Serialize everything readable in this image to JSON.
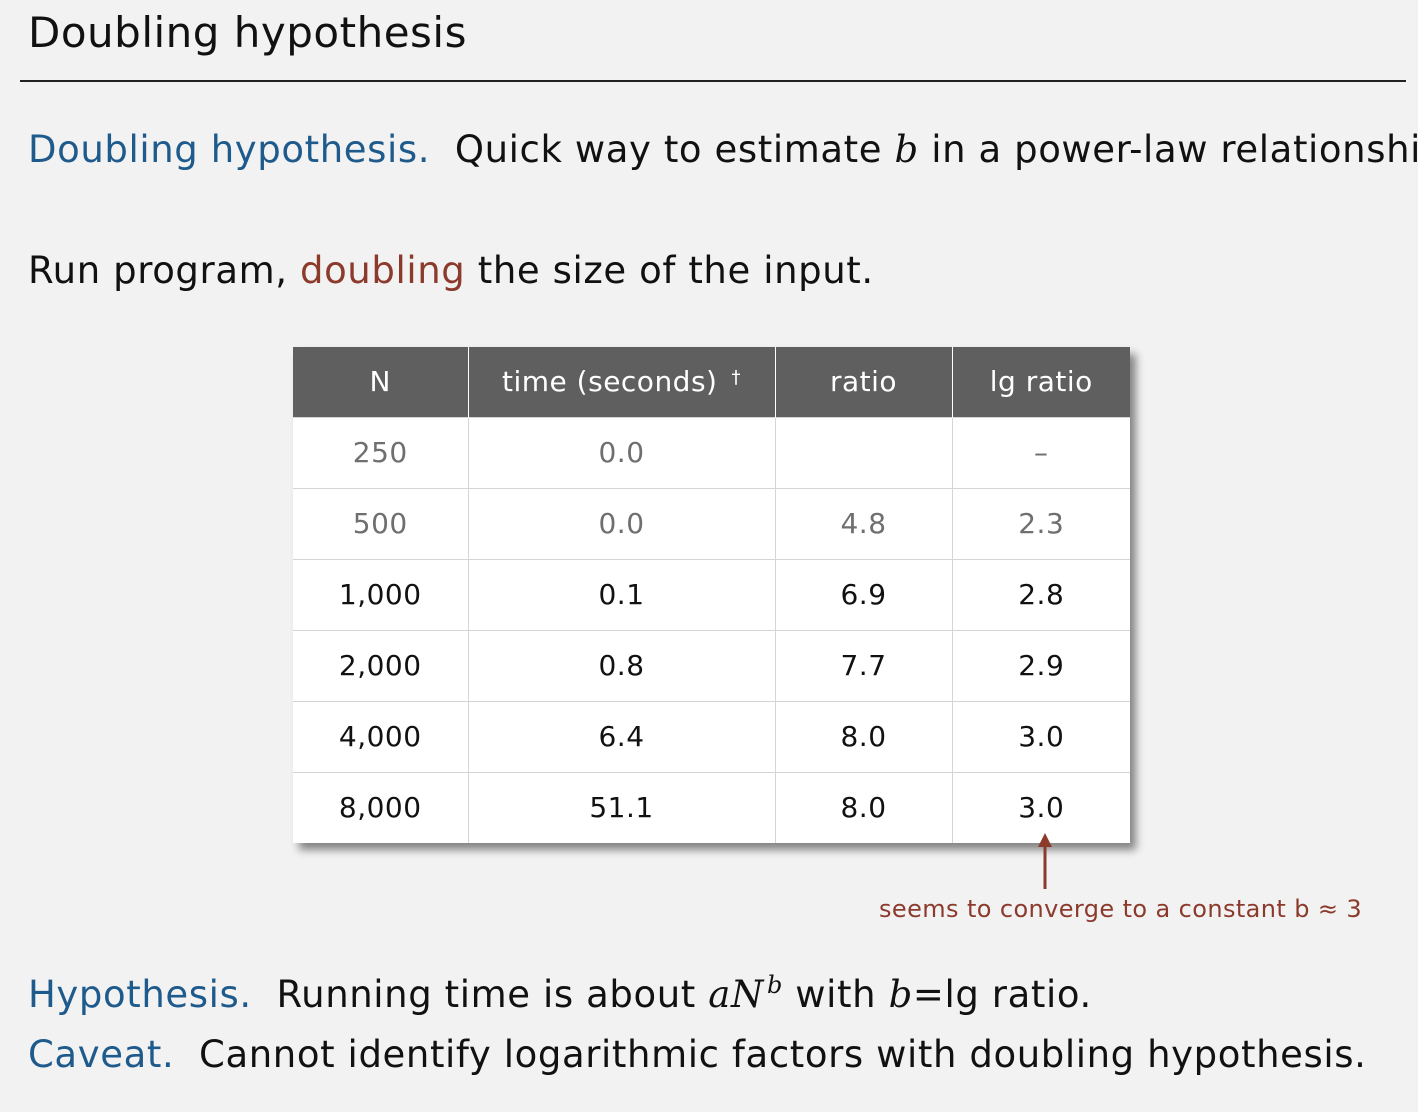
{
  "title": "Doubling hypothesis",
  "intro": {
    "keyword": "Doubling hypothesis.",
    "text_before": "Quick way to estimate",
    "var_b": "b",
    "text_after": "in a power-law relationship."
  },
  "run": {
    "before": "Run program,",
    "emph": "doubling",
    "after": "the size of the input."
  },
  "table": {
    "headers": [
      "N",
      "time (seconds)",
      "ratio",
      "lg ratio"
    ],
    "dagger": "†",
    "rows": [
      {
        "n": "250",
        "time": "0.0",
        "ratio": "",
        "lg": "–"
      },
      {
        "n": "500",
        "time": "0.0",
        "ratio": "4.8",
        "lg": "2.3"
      },
      {
        "n": "1,000",
        "time": "0.1",
        "ratio": "6.9",
        "lg": "2.8"
      },
      {
        "n": "2,000",
        "time": "0.8",
        "ratio": "7.7",
        "lg": "2.9"
      },
      {
        "n": "4,000",
        "time": "6.4",
        "ratio": "8.0",
        "lg": "3.0"
      },
      {
        "n": "8,000",
        "time": "51.1",
        "ratio": "8.0",
        "lg": "3.0"
      }
    ]
  },
  "annotation": "seems to converge to a constant b ≈ 3",
  "hypothesis": {
    "keyword": "Hypothesis.",
    "text1": "Running time is about",
    "a": "a",
    "N": "N",
    "b_exp": "b",
    "text2": "with",
    "b": "b",
    "eq": "=",
    "text3": "lg ratio."
  },
  "caveat": {
    "keyword": "Caveat.",
    "text": "Cannot identify logarithmic factors with doubling hypothesis."
  },
  "colors": {
    "keyword": "#1f5a8c",
    "emphasis": "#8b3a2c",
    "header_bg": "#5f5f5f"
  }
}
